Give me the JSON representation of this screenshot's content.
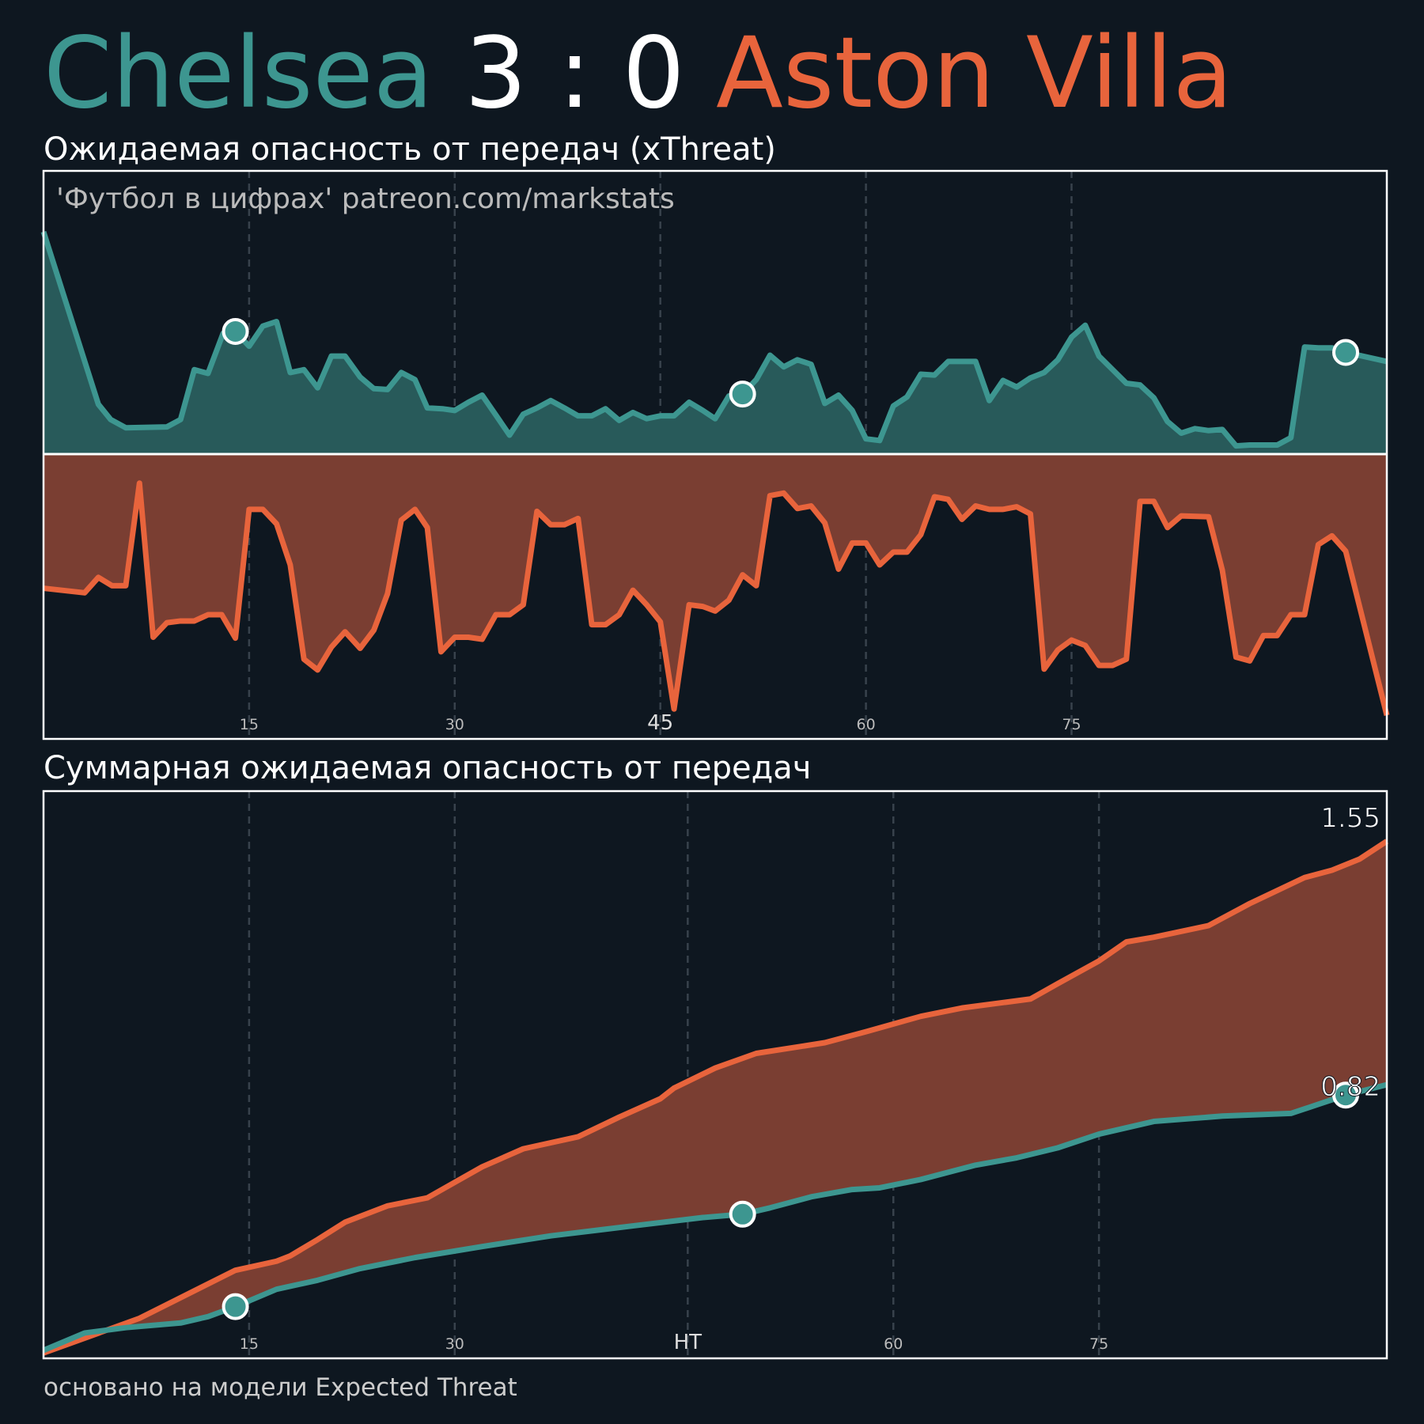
{
  "header": {
    "home": "Chelsea",
    "score": "3 : 0",
    "away": "Aston Villa"
  },
  "chart_data": [
    {
      "type": "mirror-area",
      "title": "Ожидаемая опасность от передач (xThreat)",
      "watermark": "'Футбол в цифрах' patreon.com/markstats",
      "xlim": [
        0,
        98
      ],
      "ylim": [
        0,
        1
      ],
      "xticks": [
        15,
        30,
        45,
        60,
        75
      ],
      "grid": true,
      "series": [
        {
          "color": "#3d9690",
          "fill": "#285a5a",
          "goals": [
            14,
            51,
            95
          ],
          "x": [
            0,
            4,
            4.9,
            6,
            9,
            10,
            11,
            12,
            13.1,
            14,
            15,
            16,
            17,
            18,
            19,
            20,
            21,
            22,
            23.1,
            24.1,
            25.1,
            26.1,
            27.1,
            28,
            29.1,
            30,
            31,
            32,
            33,
            34,
            35,
            36,
            37,
            38,
            39,
            40,
            41,
            42,
            43,
            44,
            45,
            46,
            47.1,
            48.1,
            49,
            50,
            51,
            52,
            53,
            54,
            55,
            56,
            57,
            58,
            59,
            60,
            61,
            62,
            63,
            64,
            65,
            66,
            68,
            69,
            70,
            71,
            72,
            73,
            74,
            75,
            76,
            77,
            78,
            79,
            80,
            81,
            82,
            83,
            84,
            85,
            86,
            87,
            88,
            90,
            91,
            92,
            93,
            94,
            95,
            98
          ],
          "values": [
            0.785,
            0.176,
            0.122,
            0.093,
            0.096,
            0.122,
            0.298,
            0.285,
            0.426,
            0.433,
            0.381,
            0.452,
            0.468,
            0.288,
            0.298,
            0.234,
            0.346,
            0.346,
            0.272,
            0.231,
            0.228,
            0.288,
            0.263,
            0.163,
            0.16,
            0.154,
            0.183,
            0.208,
            0.138,
            0.067,
            0.141,
            0.163,
            0.189,
            0.163,
            0.135,
            0.135,
            0.16,
            0.119,
            0.147,
            0.125,
            0.135,
            0.135,
            0.183,
            0.154,
            0.125,
            0.205,
            0.212,
            0.263,
            0.349,
            0.308,
            0.333,
            0.317,
            0.179,
            0.208,
            0.154,
            0.054,
            0.048,
            0.17,
            0.202,
            0.282,
            0.279,
            0.327,
            0.327,
            0.189,
            0.26,
            0.237,
            0.269,
            0.288,
            0.333,
            0.413,
            0.455,
            0.346,
            0.298,
            0.25,
            0.244,
            0.199,
            0.115,
            0.074,
            0.09,
            0.083,
            0.087,
            0.029,
            0.032,
            0.032,
            0.058,
            0.378,
            0.375,
            0.375,
            0.359,
            0.327
          ]
        },
        {
          "color": "#e8643c",
          "fill": "#7a3e32",
          "x": [
            0,
            3,
            4,
            5,
            6,
            7,
            8,
            9,
            10,
            11,
            12,
            13,
            14,
            15,
            16,
            17,
            18,
            19,
            20,
            21,
            22,
            23.1,
            24.1,
            25.1,
            26.1,
            27.1,
            28,
            29,
            30,
            31,
            32,
            33,
            34,
            35,
            36,
            37,
            38,
            39,
            40,
            41,
            42,
            43,
            44,
            45,
            46,
            47.1,
            48.1,
            49,
            50,
            51,
            52,
            53,
            54,
            55,
            56,
            57,
            58,
            59,
            60,
            61,
            62,
            63,
            64,
            65,
            66,
            67,
            68,
            69,
            70,
            71,
            72,
            73,
            74,
            75,
            76,
            77,
            78,
            79,
            80,
            81,
            82,
            83,
            85,
            86,
            87,
            88,
            89,
            90,
            91,
            92,
            93,
            94,
            95,
            98
          ],
          "values": [
            0.471,
            0.487,
            0.433,
            0.462,
            0.462,
            0.102,
            0.643,
            0.592,
            0.586,
            0.586,
            0.564,
            0.564,
            0.646,
            0.194,
            0.194,
            0.245,
            0.389,
            0.72,
            0.758,
            0.678,
            0.624,
            0.682,
            0.618,
            0.49,
            0.232,
            0.194,
            0.258,
            0.694,
            0.643,
            0.643,
            0.65,
            0.564,
            0.564,
            0.529,
            0.201,
            0.248,
            0.248,
            0.226,
            0.599,
            0.599,
            0.564,
            0.478,
            0.529,
            0.589,
            0.895,
            0.529,
            0.535,
            0.551,
            0.513,
            0.424,
            0.462,
            0.146,
            0.137,
            0.191,
            0.182,
            0.242,
            0.404,
            0.312,
            0.312,
            0.389,
            0.344,
            0.344,
            0.283,
            0.15,
            0.159,
            0.229,
            0.182,
            0.194,
            0.194,
            0.185,
            0.21,
            0.755,
            0.688,
            0.653,
            0.672,
            0.742,
            0.742,
            0.72,
            0.166,
            0.166,
            0.258,
            0.217,
            0.22,
            0.408,
            0.713,
            0.726,
            0.637,
            0.637,
            0.564,
            0.564,
            0.318,
            0.287,
            0.341,
            0.917
          ]
        }
      ]
    },
    {
      "type": "cumulative-line",
      "title": "Суммарная ожидаемая опасность от передач",
      "xlim": [
        0,
        98
      ],
      "ylim": [
        0,
        1.7
      ],
      "xticks": [
        15,
        30,
        {
          "value": 47,
          "label": "HT"
        },
        {
          "value": 62,
          "label": "60"
        },
        {
          "value": 77,
          "label": "75"
        }
      ],
      "grid": true,
      "series": [
        {
          "color": "#e8643c",
          "fill": "#7a3e32",
          "x": [
            0,
            7,
            14,
            17,
            18,
            20,
            22,
            25.1,
            28,
            32,
            35,
            39,
            42,
            45,
            46,
            49,
            52,
            57,
            60,
            64,
            67,
            72,
            74,
            77,
            79,
            81,
            85,
            88,
            92,
            94,
            96,
            98
          ],
          "values": [
            0.016,
            0.12,
            0.264,
            0.291,
            0.307,
            0.356,
            0.408,
            0.457,
            0.481,
            0.574,
            0.628,
            0.664,
            0.723,
            0.778,
            0.81,
            0.87,
            0.914,
            0.946,
            0.979,
            1.025,
            1.05,
            1.077,
            1.123,
            1.191,
            1.248,
            1.262,
            1.297,
            1.363,
            1.441,
            1.463,
            1.496,
            1.55
          ]
        },
        {
          "color": "#3d9690",
          "goals": [
            14,
            51,
            95
          ],
          "x": [
            0,
            3,
            6,
            10,
            12,
            14,
            17,
            20,
            23.1,
            27.1,
            32,
            37,
            43,
            48.1,
            51,
            53,
            56,
            59,
            61,
            64,
            68,
            71,
            74,
            77,
            81,
            86,
            91,
            94,
            95,
            98
          ],
          "values": [
            0.024,
            0.076,
            0.092,
            0.106,
            0.125,
            0.155,
            0.207,
            0.234,
            0.269,
            0.302,
            0.335,
            0.367,
            0.397,
            0.422,
            0.432,
            0.451,
            0.484,
            0.506,
            0.511,
            0.536,
            0.579,
            0.601,
            0.631,
            0.672,
            0.71,
            0.726,
            0.734,
            0.775,
            0.789,
            0.82
          ]
        }
      ]
    }
  ],
  "footer": "основано на модели Expected Threat"
}
